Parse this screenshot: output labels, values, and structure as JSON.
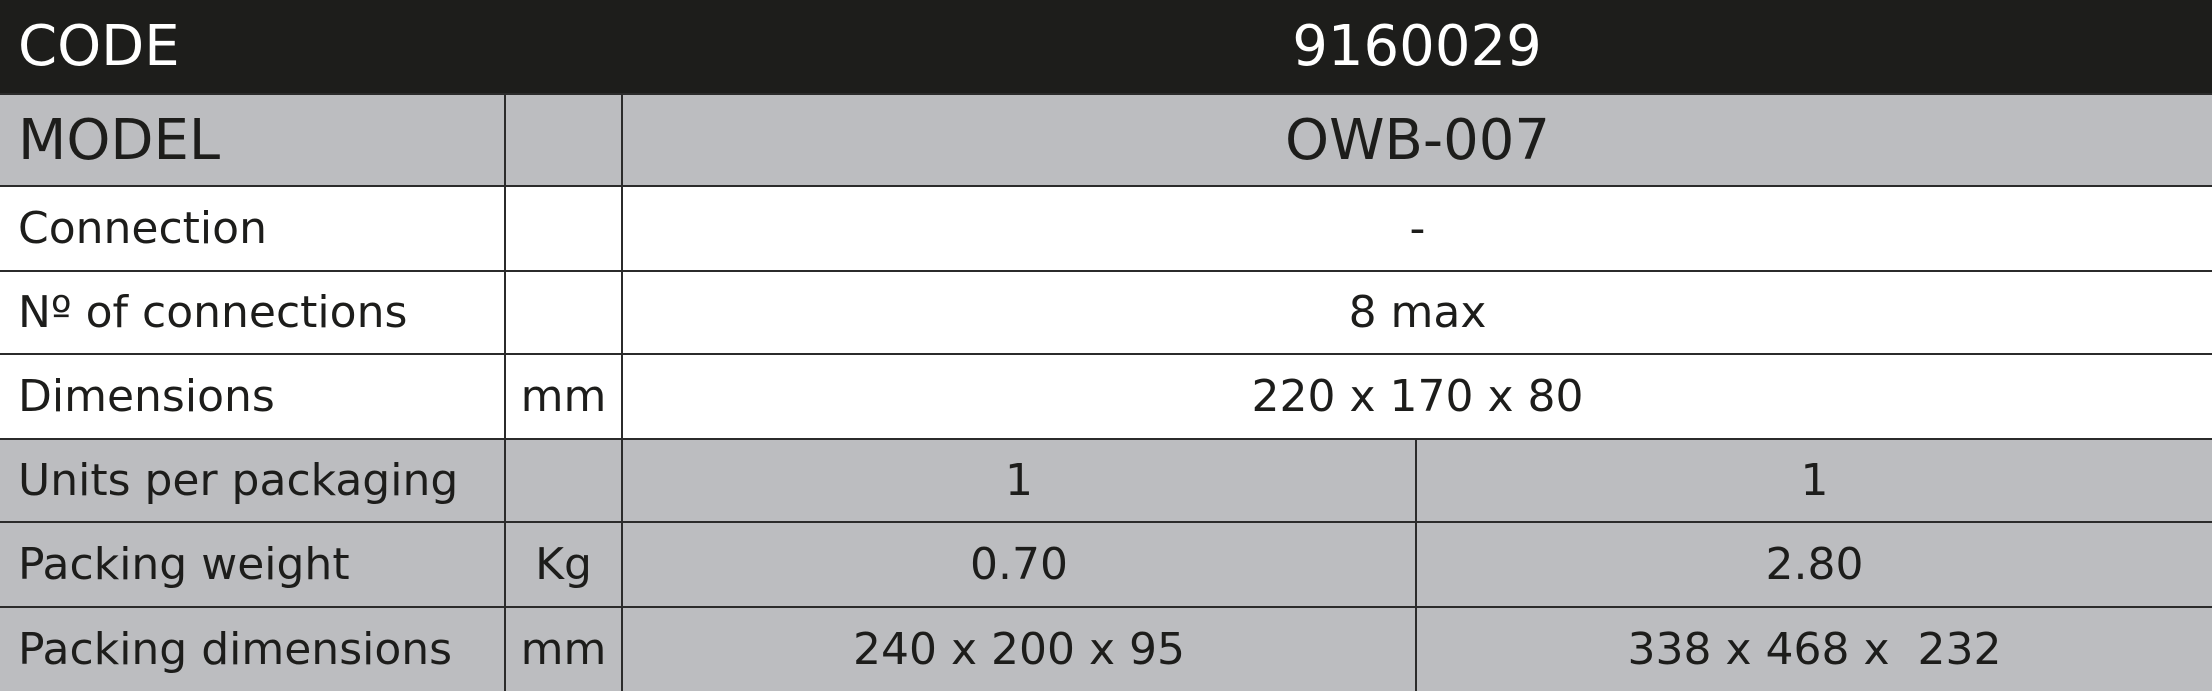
{
  "table": {
    "header": {
      "label": "CODE",
      "value": "9160029"
    },
    "model": {
      "label": "MODEL",
      "value": "OWB-007"
    },
    "rows": [
      {
        "label": "Connection",
        "values": [
          "-"
        ]
      },
      {
        "label": "Nº of connections",
        "values": [
          "8 max"
        ]
      },
      {
        "label": "Dimensions",
        "unit": "mm",
        "values": [
          "220 x 170 x 80"
        ]
      },
      {
        "label": "Units per packaging",
        "values": [
          "1",
          "1"
        ]
      },
      {
        "label": "Packing weight",
        "unit": "Kg",
        "values": [
          "0.70",
          "2.80"
        ]
      },
      {
        "label": "Packing dimensions",
        "unit": "mm",
        "values": [
          "240 x 200 x 95",
          "338 x 468 x  232"
        ]
      }
    ]
  }
}
